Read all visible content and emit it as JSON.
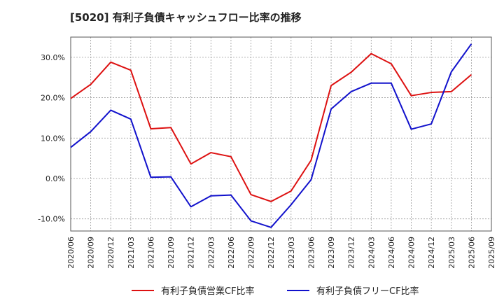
{
  "chart_data": {
    "type": "line",
    "title": "[5020]  有利子負債キャッシュフロー比率の推移",
    "x": [
      "2020/06",
      "2020/09",
      "2020/12",
      "2021/03",
      "2021/06",
      "2021/09",
      "2021/12",
      "2022/03",
      "2022/06",
      "2022/09",
      "2022/12",
      "2023/03",
      "2023/06",
      "2023/09",
      "2023/12",
      "2024/03",
      "2024/06",
      "2024/09",
      "2024/12",
      "2025/03",
      "2025/06",
      "2025/09"
    ],
    "x_ticks": [
      "2020/06",
      "2020/09",
      "2020/12",
      "2021/03",
      "2021/06",
      "2021/09",
      "2021/12",
      "2022/03",
      "2022/06",
      "2022/09",
      "2022/12",
      "2023/03",
      "2023/06",
      "2023/09",
      "2023/12",
      "2024/03",
      "2024/06",
      "2024/09",
      "2024/12",
      "2025/03",
      "2025/06",
      "2025/09"
    ],
    "y_ticks": [
      "30.0%",
      "20.0%",
      "10.0%",
      "0.0%",
      "-10.0%"
    ],
    "y_tick_values": [
      30,
      20,
      10,
      0,
      -10
    ],
    "ylim": [
      -13,
      35
    ],
    "grid": true,
    "legend_position": "bottom",
    "series": [
      {
        "name": "有利子負債営業CF比率",
        "color": "#dd1111",
        "values": [
          19.8,
          23.3,
          28.8,
          26.8,
          12.3,
          12.6,
          3.6,
          6.4,
          5.4,
          -4.0,
          -5.7,
          -3.1,
          4.5,
          23.0,
          26.3,
          30.9,
          28.4,
          20.5,
          21.3,
          21.5,
          25.7,
          null
        ]
      },
      {
        "name": "有利子負債フリーCF比率",
        "color": "#1111cc",
        "values": [
          7.7,
          11.6,
          16.9,
          14.7,
          0.3,
          0.4,
          -7.0,
          -4.3,
          -4.1,
          -10.5,
          -12.1,
          -6.5,
          -0.3,
          17.2,
          21.5,
          23.6,
          23.6,
          12.2,
          13.5,
          26.4,
          33.3,
          null
        ]
      }
    ]
  }
}
